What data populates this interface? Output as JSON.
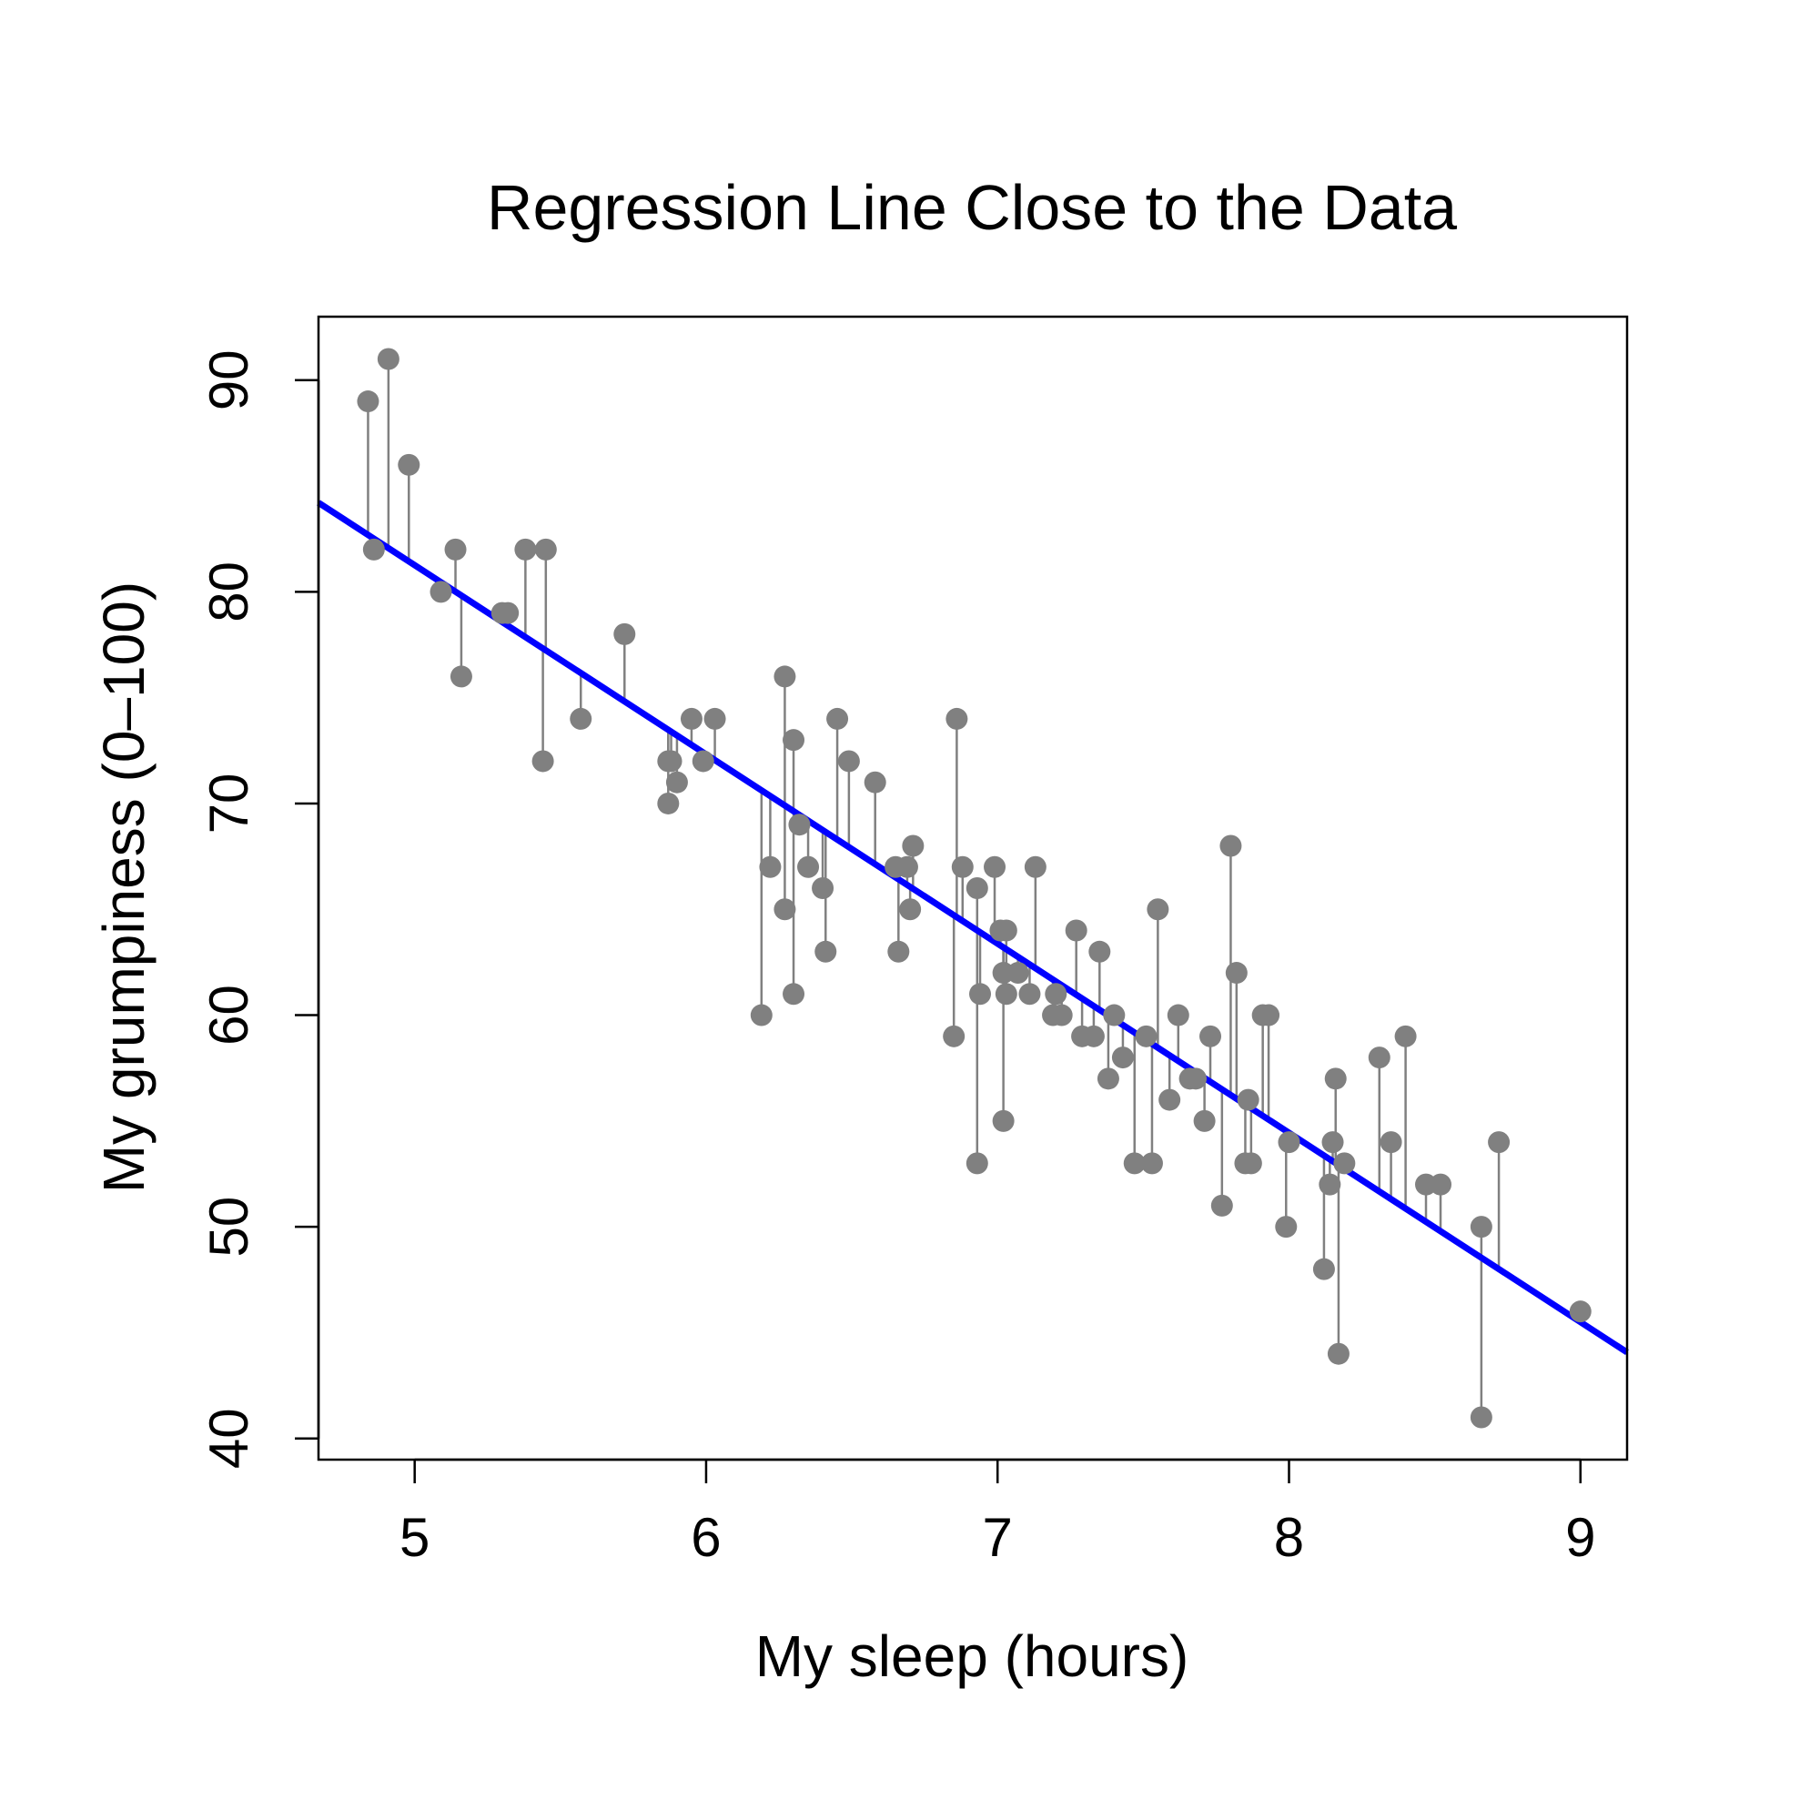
{
  "chart_data": {
    "type": "scatter",
    "title": "Regression Line Close to the Data",
    "xlabel": "My sleep (hours)",
    "ylabel": "My grumpiness (0–100)",
    "xlim": [
      4.67,
      9.16
    ],
    "ylim": [
      39.0,
      93.0
    ],
    "xticks": [
      5,
      6,
      7,
      8,
      9
    ],
    "xtick_labels": [
      "5",
      "6",
      "7",
      "8",
      "9"
    ],
    "yticks": [
      40,
      50,
      60,
      70,
      80,
      90
    ],
    "ytick_labels": [
      "40",
      "50",
      "60",
      "70",
      "80",
      "90"
    ],
    "grid": false,
    "legend": "none",
    "point_color": "#808080",
    "residual_color": "#808080",
    "line_color": "#0000ff",
    "regression_line": {
      "intercept": 125.96,
      "slope": -8.94
    },
    "residual_lines": true,
    "points": [
      {
        "x": 4.84,
        "y": 89
      },
      {
        "x": 4.86,
        "y": 82
      },
      {
        "x": 4.91,
        "y": 91
      },
      {
        "x": 4.98,
        "y": 86
      },
      {
        "x": 5.09,
        "y": 80
      },
      {
        "x": 5.14,
        "y": 82
      },
      {
        "x": 5.16,
        "y": 76
      },
      {
        "x": 5.3,
        "y": 79
      },
      {
        "x": 5.32,
        "y": 79
      },
      {
        "x": 5.38,
        "y": 82
      },
      {
        "x": 5.44,
        "y": 72
      },
      {
        "x": 5.45,
        "y": 82
      },
      {
        "x": 5.57,
        "y": 74
      },
      {
        "x": 5.72,
        "y": 78
      },
      {
        "x": 5.87,
        "y": 72
      },
      {
        "x": 5.87,
        "y": 70
      },
      {
        "x": 5.88,
        "y": 72
      },
      {
        "x": 5.9,
        "y": 71
      },
      {
        "x": 5.95,
        "y": 74
      },
      {
        "x": 5.99,
        "y": 72
      },
      {
        "x": 6.03,
        "y": 74
      },
      {
        "x": 6.19,
        "y": 60
      },
      {
        "x": 6.22,
        "y": 67
      },
      {
        "x": 6.27,
        "y": 65
      },
      {
        "x": 6.27,
        "y": 76
      },
      {
        "x": 6.3,
        "y": 73
      },
      {
        "x": 6.3,
        "y": 61
      },
      {
        "x": 6.32,
        "y": 69
      },
      {
        "x": 6.35,
        "y": 67
      },
      {
        "x": 6.4,
        "y": 66
      },
      {
        "x": 6.41,
        "y": 63
      },
      {
        "x": 6.45,
        "y": 74
      },
      {
        "x": 6.49,
        "y": 72
      },
      {
        "x": 6.58,
        "y": 71
      },
      {
        "x": 6.65,
        "y": 67
      },
      {
        "x": 6.66,
        "y": 63
      },
      {
        "x": 6.69,
        "y": 67
      },
      {
        "x": 6.7,
        "y": 65
      },
      {
        "x": 6.71,
        "y": 68
      },
      {
        "x": 6.85,
        "y": 59
      },
      {
        "x": 6.86,
        "y": 74
      },
      {
        "x": 6.88,
        "y": 67
      },
      {
        "x": 6.93,
        "y": 66
      },
      {
        "x": 6.93,
        "y": 53
      },
      {
        "x": 6.94,
        "y": 61
      },
      {
        "x": 6.99,
        "y": 67
      },
      {
        "x": 7.01,
        "y": 64
      },
      {
        "x": 7.02,
        "y": 55
      },
      {
        "x": 7.02,
        "y": 62
      },
      {
        "x": 7.03,
        "y": 61
      },
      {
        "x": 7.03,
        "y": 64
      },
      {
        "x": 7.07,
        "y": 62
      },
      {
        "x": 7.11,
        "y": 61
      },
      {
        "x": 7.13,
        "y": 67
      },
      {
        "x": 7.19,
        "y": 60
      },
      {
        "x": 7.2,
        "y": 61
      },
      {
        "x": 7.22,
        "y": 60
      },
      {
        "x": 7.27,
        "y": 64
      },
      {
        "x": 7.29,
        "y": 59
      },
      {
        "x": 7.33,
        "y": 59
      },
      {
        "x": 7.35,
        "y": 63
      },
      {
        "x": 7.38,
        "y": 57
      },
      {
        "x": 7.4,
        "y": 60
      },
      {
        "x": 7.43,
        "y": 58
      },
      {
        "x": 7.47,
        "y": 53
      },
      {
        "x": 7.51,
        "y": 59
      },
      {
        "x": 7.53,
        "y": 53
      },
      {
        "x": 7.55,
        "y": 65
      },
      {
        "x": 7.59,
        "y": 56
      },
      {
        "x": 7.62,
        "y": 60
      },
      {
        "x": 7.66,
        "y": 57
      },
      {
        "x": 7.68,
        "y": 57
      },
      {
        "x": 7.71,
        "y": 55
      },
      {
        "x": 7.73,
        "y": 59
      },
      {
        "x": 7.77,
        "y": 51
      },
      {
        "x": 7.8,
        "y": 68
      },
      {
        "x": 7.82,
        "y": 62
      },
      {
        "x": 7.85,
        "y": 53
      },
      {
        "x": 7.86,
        "y": 56
      },
      {
        "x": 7.87,
        "y": 53
      },
      {
        "x": 7.91,
        "y": 60
      },
      {
        "x": 7.93,
        "y": 60
      },
      {
        "x": 7.99,
        "y": 50
      },
      {
        "x": 8.0,
        "y": 54
      },
      {
        "x": 8.12,
        "y": 48
      },
      {
        "x": 8.14,
        "y": 52
      },
      {
        "x": 8.15,
        "y": 54
      },
      {
        "x": 8.16,
        "y": 57
      },
      {
        "x": 8.17,
        "y": 44
      },
      {
        "x": 8.19,
        "y": 53
      },
      {
        "x": 8.31,
        "y": 58
      },
      {
        "x": 8.35,
        "y": 54
      },
      {
        "x": 8.4,
        "y": 59
      },
      {
        "x": 8.47,
        "y": 52
      },
      {
        "x": 8.52,
        "y": 52
      },
      {
        "x": 8.66,
        "y": 50
      },
      {
        "x": 8.66,
        "y": 41
      },
      {
        "x": 8.72,
        "y": 54
      },
      {
        "x": 9.0,
        "y": 46
      }
    ]
  }
}
